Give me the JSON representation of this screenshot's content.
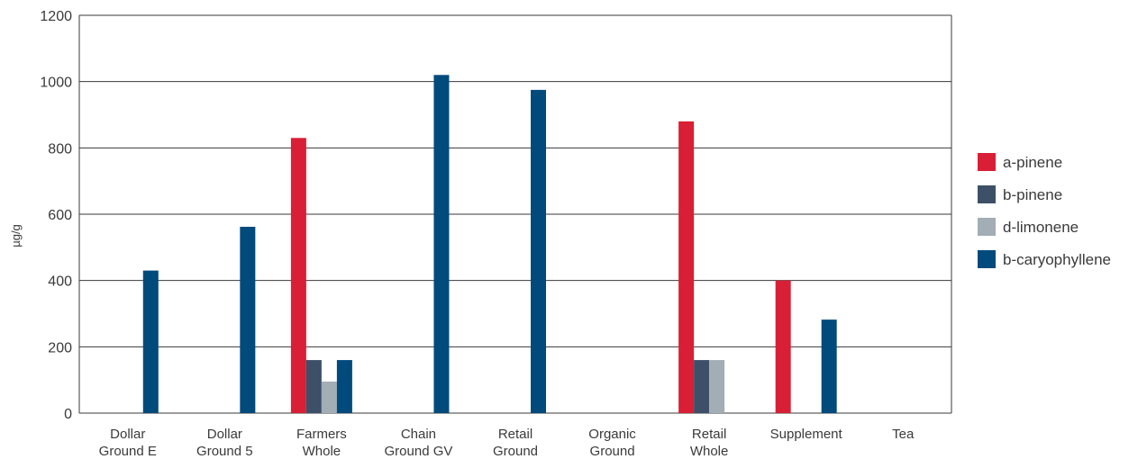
{
  "chart_data": {
    "type": "bar",
    "title": "",
    "xlabel": "",
    "ylabel": "µg/g",
    "ylim": [
      0,
      1200
    ],
    "yticks": [
      0,
      200,
      400,
      600,
      800,
      1000,
      1200
    ],
    "grid": true,
    "legend_position": "right",
    "categories": [
      [
        "Dollar",
        "Ground E"
      ],
      [
        "Dollar",
        "Ground 5"
      ],
      [
        "Farmers",
        "Whole"
      ],
      [
        "Chain",
        "Ground GV"
      ],
      [
        "Retail",
        "Ground"
      ],
      [
        "Organic",
        "Ground"
      ],
      [
        "Retail",
        "Whole"
      ],
      [
        "Supplement"
      ],
      [
        "Tea"
      ]
    ],
    "series": [
      {
        "name": "a-pinene",
        "color": "#d91f35",
        "values": [
          0,
          0,
          830,
          0,
          0,
          0,
          880,
          400,
          0
        ]
      },
      {
        "name": "b-pinene",
        "color": "#3d5068",
        "values": [
          0,
          0,
          160,
          0,
          0,
          0,
          160,
          0,
          0
        ]
      },
      {
        "name": "d-limonene",
        "color": "#a2adb6",
        "values": [
          0,
          0,
          95,
          0,
          0,
          0,
          160,
          0,
          0
        ]
      },
      {
        "name": "b-caryophyllene",
        "color": "#004a7c",
        "values": [
          430,
          562,
          160,
          1020,
          975,
          0,
          0,
          282,
          0
        ]
      }
    ]
  }
}
